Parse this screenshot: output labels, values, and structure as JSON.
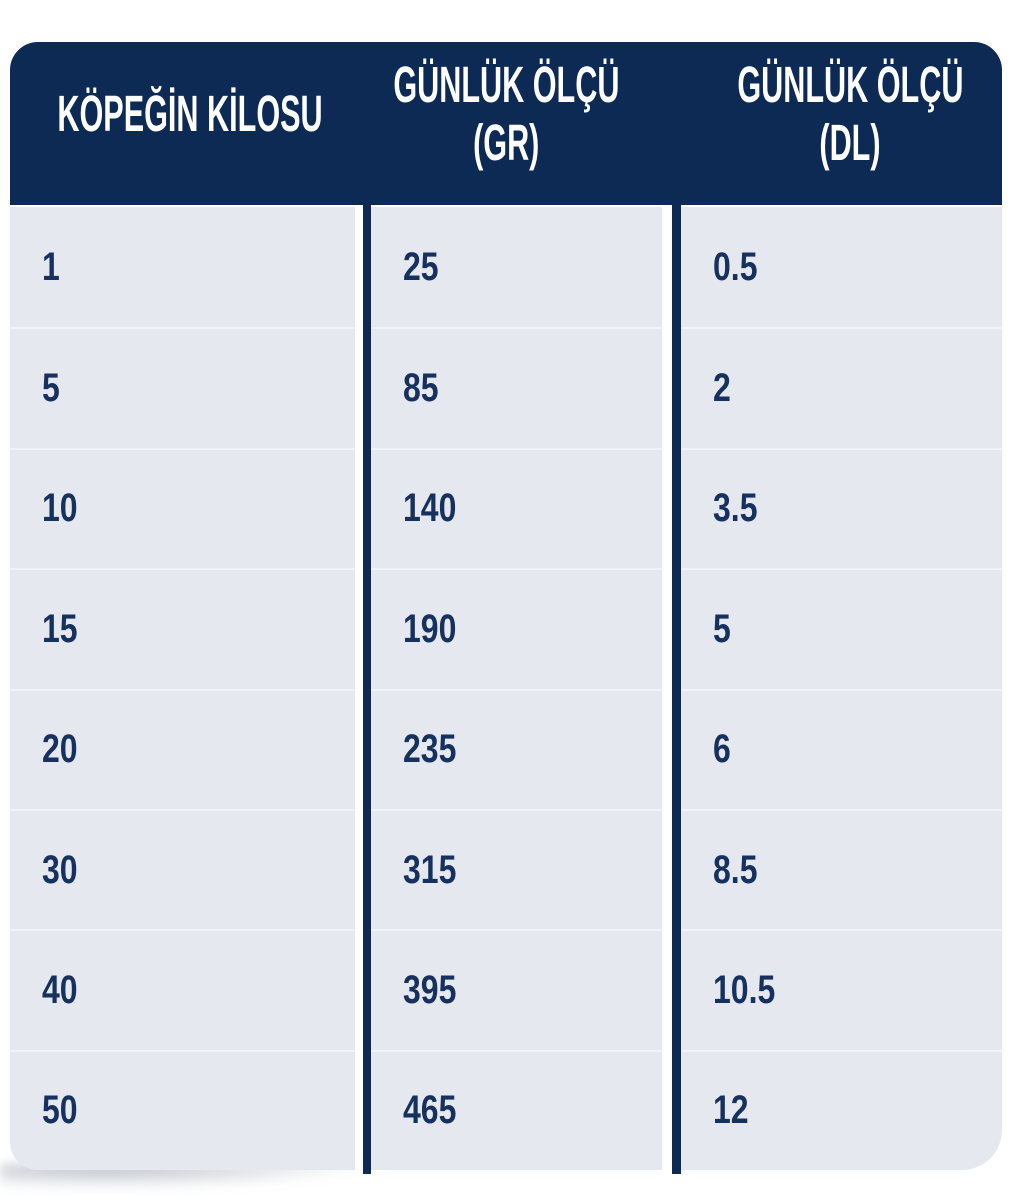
{
  "colors": {
    "header_bg": "#0d2a54",
    "divider": "#0d2a54",
    "cell_bg": "#e5e8ef",
    "cell_text": "#16315e",
    "header_text": "#ffffff",
    "row_separator": "#f1f3f8",
    "page_bg": "#ffffff"
  },
  "table": {
    "headers": [
      {
        "line1": "KÖPEĞİN KİLOSU",
        "line2": ""
      },
      {
        "line1": "GÜNLÜK ÖLÇÜ",
        "line2": "(GR)"
      },
      {
        "line1": "GÜNLÜK ÖLÇÜ",
        "line2": "(DL)"
      }
    ],
    "rows": [
      [
        "1",
        "25",
        "0.5"
      ],
      [
        "5",
        "85",
        "2"
      ],
      [
        "10",
        "140",
        "3.5"
      ],
      [
        "15",
        "190",
        "5"
      ],
      [
        "20",
        "235",
        "6"
      ],
      [
        "30",
        "315",
        "8.5"
      ],
      [
        "40",
        "395",
        "10.5"
      ],
      [
        "50",
        "465",
        "12"
      ]
    ]
  },
  "chart_data": {
    "type": "table",
    "columns": [
      "KÖPEĞİN KİLOSU",
      "GÜNLÜK ÖLÇÜ (GR)",
      "GÜNLÜK ÖLÇÜ (DL)"
    ],
    "rows": [
      [
        1,
        25,
        0.5
      ],
      [
        5,
        85,
        2
      ],
      [
        10,
        140,
        3.5
      ],
      [
        15,
        190,
        5
      ],
      [
        20,
        235,
        6
      ],
      [
        30,
        315,
        8.5
      ],
      [
        40,
        395,
        10.5
      ],
      [
        50,
        465,
        12
      ]
    ]
  }
}
